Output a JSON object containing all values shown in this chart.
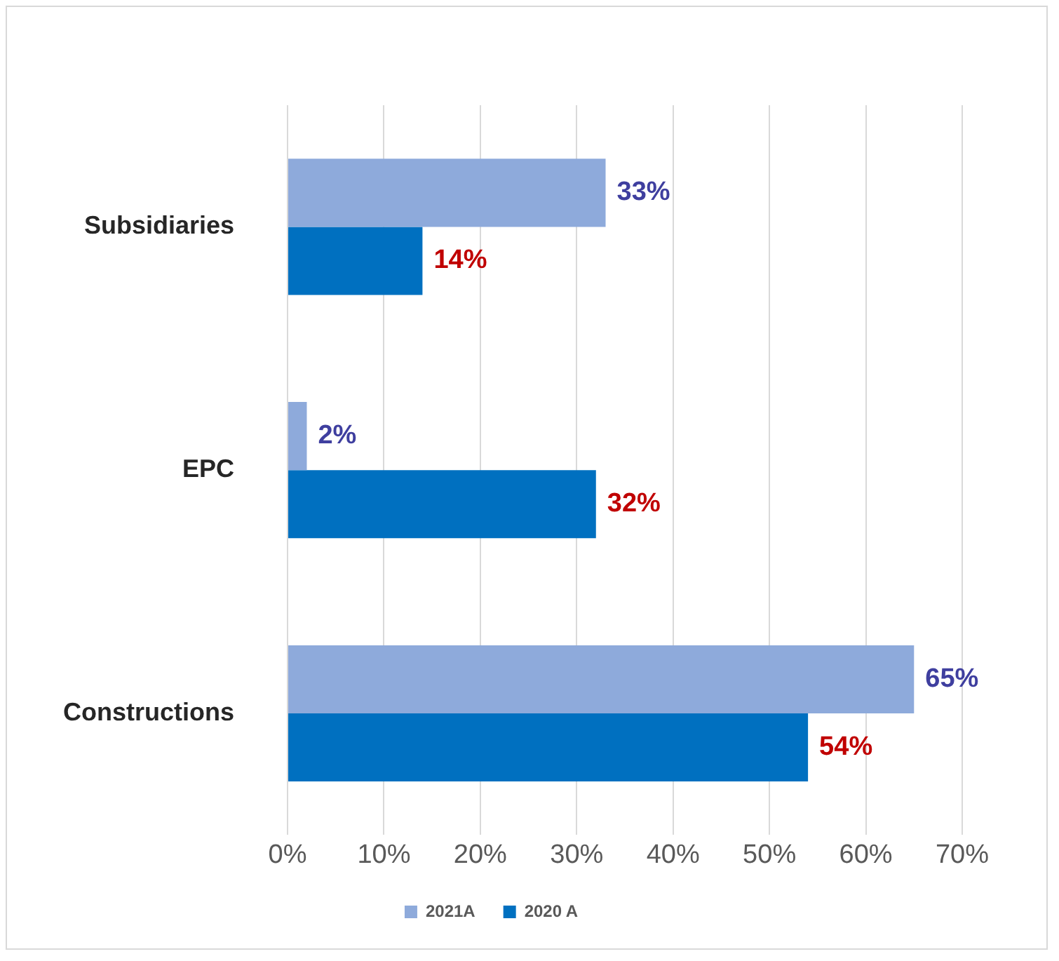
{
  "chart_data": {
    "type": "bar",
    "orientation": "horizontal",
    "categories": [
      "Subsidiaries",
      "EPC",
      "Constructions"
    ],
    "series": [
      {
        "name": "2021A",
        "color": "#8eaadb",
        "values": [
          33,
          2,
          65
        ],
        "value_labels": [
          "33%",
          "2%",
          "65%"
        ]
      },
      {
        "name": "2020 A",
        "color": "#0070c0",
        "values": [
          14,
          32,
          54
        ],
        "value_labels": [
          "14%",
          "32%",
          "54%"
        ]
      }
    ],
    "xlim": [
      0,
      70
    ],
    "xticks": [
      {
        "value": 0,
        "label": "0%"
      },
      {
        "value": 10,
        "label": "10%"
      },
      {
        "value": 20,
        "label": "20%"
      },
      {
        "value": 30,
        "label": "30%"
      },
      {
        "value": 40,
        "label": "40%"
      },
      {
        "value": 50,
        "label": "50%"
      },
      {
        "value": 60,
        "label": "60%"
      },
      {
        "value": 70,
        "label": "70%"
      }
    ],
    "grid": "x",
    "legend": "bottom"
  }
}
